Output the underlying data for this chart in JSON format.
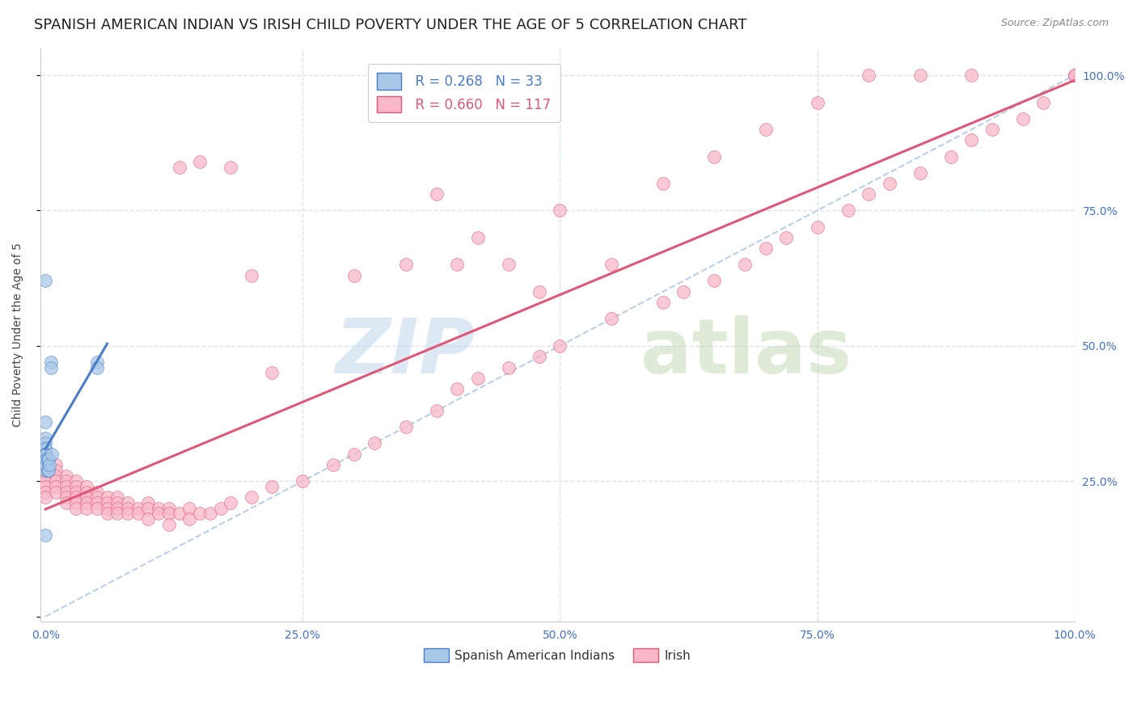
{
  "title": "SPANISH AMERICAN INDIAN VS IRISH CHILD POVERTY UNDER THE AGE OF 5 CORRELATION CHART",
  "source_text": "Source: ZipAtlas.com",
  "ylabel": "Child Poverty Under the Age of 5",
  "background_color": "#ffffff",
  "legend_labels": [
    "Spanish American Indians",
    "Irish"
  ],
  "scatter_color_blue": "#a8c8e8",
  "scatter_color_pink": "#f8b8c8",
  "line_color_blue": "#4a7cc7",
  "line_color_pink": "#e05878",
  "diag_color": "#b8d0e8",
  "grid_color": "#d8e4ee",
  "tick_color": "#4472c4",
  "title_fontsize": 13,
  "axis_label_fontsize": 10,
  "tick_fontsize": 10,
  "blue_x": [
    0.0,
    0.0,
    0.0,
    0.0,
    0.0,
    0.0,
    0.0,
    0.0,
    0.0,
    0.0,
    0.0,
    0.0,
    0.0,
    0.0,
    0.0,
    0.0,
    0.0,
    0.0,
    0.0,
    0.0,
    0.001,
    0.001,
    0.002,
    0.002,
    0.003,
    0.003,
    0.004,
    0.005,
    0.005,
    0.006,
    0.05,
    0.05,
    0.0
  ],
  "blue_y": [
    0.62,
    0.36,
    0.33,
    0.32,
    0.31,
    0.31,
    0.3,
    0.29,
    0.29,
    0.27,
    0.3,
    0.3,
    0.3,
    0.29,
    0.29,
    0.28,
    0.3,
    0.3,
    0.29,
    0.28,
    0.3,
    0.29,
    0.29,
    0.27,
    0.29,
    0.27,
    0.28,
    0.47,
    0.46,
    0.3,
    0.47,
    0.46,
    0.15
  ],
  "pink_x": [
    0.0,
    0.0,
    0.0,
    0.0,
    0.0,
    0.0,
    0.0,
    0.0,
    0.01,
    0.01,
    0.01,
    0.01,
    0.01,
    0.01,
    0.02,
    0.02,
    0.02,
    0.02,
    0.02,
    0.02,
    0.03,
    0.03,
    0.03,
    0.03,
    0.03,
    0.03,
    0.04,
    0.04,
    0.04,
    0.04,
    0.04,
    0.05,
    0.05,
    0.05,
    0.05,
    0.06,
    0.06,
    0.06,
    0.06,
    0.07,
    0.07,
    0.07,
    0.07,
    0.08,
    0.08,
    0.08,
    0.09,
    0.09,
    0.1,
    0.1,
    0.1,
    0.11,
    0.11,
    0.12,
    0.12,
    0.12,
    0.13,
    0.14,
    0.14,
    0.15,
    0.16,
    0.17,
    0.18,
    0.2,
    0.22,
    0.25,
    0.28,
    0.3,
    0.32,
    0.35,
    0.38,
    0.4,
    0.42,
    0.45,
    0.48,
    0.5,
    0.55,
    0.6,
    0.62,
    0.65,
    0.68,
    0.7,
    0.72,
    0.75,
    0.78,
    0.8,
    0.82,
    0.85,
    0.88,
    0.9,
    0.92,
    0.95,
    0.97,
    1.0,
    1.0,
    1.0,
    0.3,
    0.35,
    0.38,
    0.4,
    0.42,
    0.45,
    0.48,
    0.5,
    0.55,
    0.6,
    0.65,
    0.7,
    0.75,
    0.8,
    0.85,
    0.9,
    0.13,
    0.15,
    0.18,
    0.2,
    0.22
  ],
  "pink_y": [
    0.3,
    0.28,
    0.27,
    0.26,
    0.25,
    0.24,
    0.23,
    0.22,
    0.28,
    0.27,
    0.26,
    0.25,
    0.24,
    0.23,
    0.26,
    0.25,
    0.24,
    0.23,
    0.22,
    0.21,
    0.25,
    0.24,
    0.23,
    0.22,
    0.21,
    0.2,
    0.24,
    0.23,
    0.22,
    0.21,
    0.2,
    0.23,
    0.22,
    0.21,
    0.2,
    0.22,
    0.21,
    0.2,
    0.19,
    0.22,
    0.21,
    0.2,
    0.19,
    0.21,
    0.2,
    0.19,
    0.2,
    0.19,
    0.21,
    0.2,
    0.18,
    0.2,
    0.19,
    0.2,
    0.19,
    0.17,
    0.19,
    0.2,
    0.18,
    0.19,
    0.19,
    0.2,
    0.21,
    0.22,
    0.24,
    0.25,
    0.28,
    0.3,
    0.32,
    0.35,
    0.38,
    0.42,
    0.44,
    0.46,
    0.48,
    0.5,
    0.55,
    0.58,
    0.6,
    0.62,
    0.65,
    0.68,
    0.7,
    0.72,
    0.75,
    0.78,
    0.8,
    0.82,
    0.85,
    0.88,
    0.9,
    0.92,
    0.95,
    1.0,
    1.0,
    1.0,
    0.63,
    0.65,
    0.78,
    0.65,
    0.7,
    0.65,
    0.6,
    0.75,
    0.65,
    0.8,
    0.85,
    0.9,
    0.95,
    1.0,
    1.0,
    1.0,
    0.83,
    0.84,
    0.83,
    0.63,
    0.45
  ]
}
